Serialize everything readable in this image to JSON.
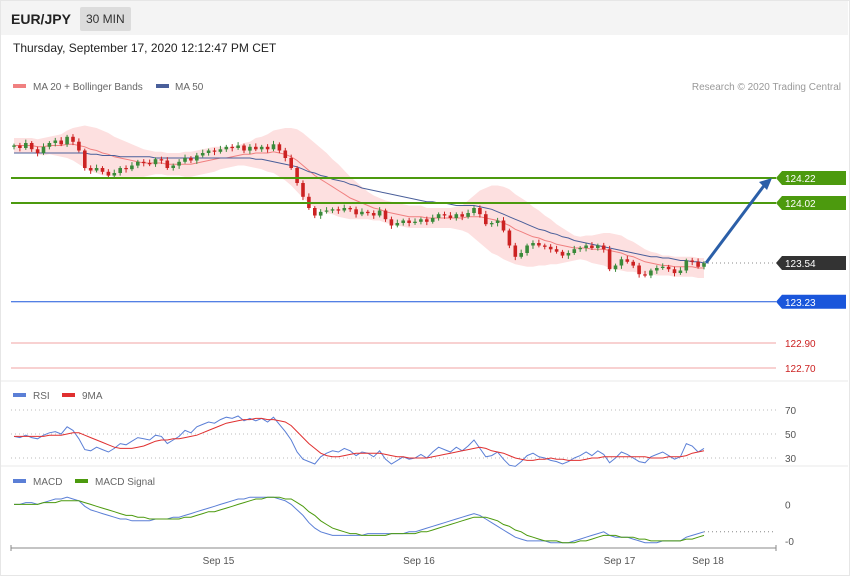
{
  "header": {
    "symbol": "EUR/JPY",
    "timeframe": "30 MIN",
    "datetime": "Thursday, September 17, 2020 12:12:47 PM CET"
  },
  "colors": {
    "bull": "#3a8a3a",
    "bear": "#cc2222",
    "ma20": "#f08080",
    "bands_fill": "#fde0e0",
    "ma50": "#4a5f9a",
    "resistance": "#4c9a0e",
    "support": "#1a56db",
    "support_light": "#f2a3a3",
    "rsi": "#5b7fd6",
    "rsi_ma": "#e03030",
    "macd": "#5b7fd6",
    "macd_signal": "#4c9a0e",
    "arrow": "#2b5fa8",
    "current": "#333333"
  },
  "chart_data": [
    {
      "type": "candlestick",
      "panel": "price",
      "legend": [
        "MA 20 + Bollinger Bands",
        "MA 50"
      ],
      "credit": "Research © 2020 Trading Central",
      "x_labels": [
        "Sep 15",
        "Sep 16",
        "Sep 17",
        "Sep 18"
      ],
      "ylim": [
        122.7,
        124.7
      ],
      "closes": [
        124.48,
        124.46,
        124.5,
        124.45,
        124.42,
        124.47,
        124.5,
        124.52,
        124.49,
        124.55,
        124.51,
        124.44,
        124.3,
        124.28,
        124.3,
        124.27,
        124.24,
        124.26,
        124.3,
        124.29,
        124.32,
        124.35,
        124.34,
        124.33,
        124.37,
        124.36,
        124.3,
        124.32,
        124.35,
        124.38,
        124.36,
        124.4,
        124.42,
        124.44,
        124.43,
        124.45,
        124.47,
        124.46,
        124.48,
        124.44,
        124.47,
        124.45,
        124.47,
        124.45,
        124.49,
        124.44,
        124.38,
        124.3,
        124.18,
        124.07,
        123.98,
        123.92,
        123.95,
        123.96,
        123.97,
        123.96,
        123.98,
        123.97,
        123.93,
        123.95,
        123.94,
        123.92,
        123.96,
        123.89,
        123.84,
        123.86,
        123.88,
        123.86,
        123.87,
        123.89,
        123.87,
        123.9,
        123.93,
        123.92,
        123.9,
        123.93,
        123.91,
        123.94,
        123.98,
        123.93,
        123.85,
        123.86,
        123.88,
        123.8,
        123.68,
        123.59,
        123.62,
        123.68,
        123.7,
        123.68,
        123.67,
        123.65,
        123.63,
        123.6,
        123.62,
        123.65,
        123.66,
        123.68,
        123.66,
        123.68,
        123.65,
        123.49,
        123.52,
        123.57,
        123.55,
        123.52,
        123.45,
        123.44,
        123.48,
        123.5,
        123.51,
        123.49,
        123.46,
        123.48,
        123.56,
        123.55,
        123.51,
        123.54
      ],
      "ma20": [
        124.48,
        124.48,
        124.48,
        124.48,
        124.47,
        124.47,
        124.48,
        124.48,
        124.48,
        124.49,
        124.49,
        124.48,
        124.47,
        124.45,
        124.44,
        124.42,
        124.41,
        124.39,
        124.38,
        124.37,
        124.36,
        124.35,
        124.34,
        124.34,
        124.34,
        124.34,
        124.33,
        124.33,
        124.33,
        124.33,
        124.33,
        124.34,
        124.35,
        124.36,
        124.37,
        124.38,
        124.38,
        124.39,
        124.4,
        124.41,
        124.41,
        124.42,
        124.42,
        124.42,
        124.43,
        124.42,
        124.41,
        124.39,
        124.36,
        124.32,
        124.28,
        124.24,
        124.21,
        124.18,
        124.15,
        124.12,
        124.09,
        124.06,
        124.04,
        124.02,
        124.0,
        123.98,
        123.97,
        123.95,
        123.94,
        123.93,
        123.92,
        123.91,
        123.91,
        123.91,
        123.9,
        123.9,
        123.9,
        123.9,
        123.9,
        123.9,
        123.9,
        123.91,
        123.91,
        123.91,
        123.9,
        123.89,
        123.88,
        123.86,
        123.84,
        123.81,
        123.79,
        123.77,
        123.75,
        123.74,
        123.72,
        123.71,
        123.69,
        123.68,
        123.67,
        123.66,
        123.66,
        123.66,
        123.65,
        123.65,
        123.65,
        123.64,
        123.63,
        123.62,
        123.6,
        123.59,
        123.57,
        123.55,
        123.54,
        123.53,
        123.52,
        123.52,
        123.51,
        123.51,
        123.51,
        123.51,
        123.5,
        123.5
      ],
      "ma50": [
        124.42,
        124.42,
        124.42,
        124.42,
        124.42,
        124.42,
        124.42,
        124.42,
        124.42,
        124.42,
        124.42,
        124.42,
        124.42,
        124.41,
        124.41,
        124.4,
        124.4,
        124.4,
        124.39,
        124.39,
        124.39,
        124.39,
        124.39,
        124.39,
        124.38,
        124.38,
        124.38,
        124.38,
        124.38,
        124.38,
        124.38,
        124.38,
        124.38,
        124.38,
        124.38,
        124.38,
        124.38,
        124.38,
        124.38,
        124.38,
        124.38,
        124.37,
        124.37,
        124.36,
        124.35,
        124.34,
        124.33,
        124.32,
        124.31,
        124.29,
        124.27,
        124.26,
        124.24,
        124.23,
        124.21,
        124.2,
        124.19,
        124.17,
        124.16,
        124.14,
        124.13,
        124.12,
        124.11,
        124.1,
        124.09,
        124.08,
        124.07,
        124.06,
        124.05,
        124.04,
        124.03,
        124.03,
        124.02,
        124.02,
        124.01,
        124.0,
        124.0,
        124.0,
        124.0,
        123.99,
        123.98,
        123.97,
        123.95,
        123.93,
        123.91,
        123.89,
        123.87,
        123.85,
        123.83,
        123.81,
        123.8,
        123.78,
        123.77,
        123.75,
        123.74,
        123.72,
        123.71,
        123.7,
        123.69,
        123.68,
        123.67,
        123.66,
        123.65,
        123.64,
        123.63,
        123.62,
        123.61,
        123.6,
        123.59,
        123.59,
        123.58,
        123.58,
        123.57,
        123.56,
        123.56,
        123.55,
        123.55,
        123.54
      ],
      "band_width": [
        0.06,
        0.06,
        0.06,
        0.06,
        0.06,
        0.07,
        0.07,
        0.08,
        0.09,
        0.11,
        0.13,
        0.15,
        0.17,
        0.18,
        0.18,
        0.18,
        0.17,
        0.16,
        0.15,
        0.14,
        0.13,
        0.12,
        0.11,
        0.1,
        0.09,
        0.09,
        0.09,
        0.09,
        0.09,
        0.1,
        0.1,
        0.1,
        0.1,
        0.1,
        0.1,
        0.09,
        0.08,
        0.08,
        0.08,
        0.09,
        0.1,
        0.12,
        0.13,
        0.15,
        0.17,
        0.19,
        0.21,
        0.23,
        0.25,
        0.26,
        0.26,
        0.26,
        0.25,
        0.24,
        0.22,
        0.21,
        0.19,
        0.17,
        0.15,
        0.13,
        0.11,
        0.1,
        0.09,
        0.09,
        0.09,
        0.09,
        0.09,
        0.09,
        0.09,
        0.09,
        0.08,
        0.08,
        0.08,
        0.08,
        0.08,
        0.09,
        0.1,
        0.13,
        0.17,
        0.21,
        0.24,
        0.27,
        0.28,
        0.29,
        0.29,
        0.28,
        0.27,
        0.26,
        0.24,
        0.22,
        0.2,
        0.18,
        0.16,
        0.14,
        0.12,
        0.1,
        0.09,
        0.1,
        0.11,
        0.12,
        0.13,
        0.14,
        0.14,
        0.14,
        0.13,
        0.12,
        0.11,
        0.1,
        0.09,
        0.09,
        0.08,
        0.08,
        0.08,
        0.08,
        0.08,
        0.08,
        0.08,
        0.08
      ],
      "levels": [
        {
          "value": 124.22,
          "label": "124.22",
          "kind": "resistance"
        },
        {
          "value": 124.02,
          "label": "124.02",
          "kind": "resistance"
        },
        {
          "value": 123.54,
          "label": "123.54",
          "kind": "current"
        },
        {
          "value": 123.23,
          "label": "123.23",
          "kind": "support"
        },
        {
          "value": 122.9,
          "label": "122.90",
          "kind": "support_light"
        },
        {
          "value": 122.7,
          "label": "122.70",
          "kind": "support_light"
        }
      ]
    },
    {
      "type": "line",
      "panel": "rsi",
      "legend": [
        "RSI",
        "9MA"
      ],
      "ylim": [
        20,
        80
      ],
      "ticks": [
        {
          "value": 70,
          "label": "70"
        },
        {
          "value": 50,
          "label": "50"
        },
        {
          "value": 30,
          "label": "30"
        }
      ],
      "rsi": [
        48,
        47,
        49,
        47,
        46,
        49,
        51,
        52,
        50,
        56,
        53,
        46,
        37,
        36,
        39,
        37,
        35,
        38,
        42,
        41,
        44,
        47,
        46,
        45,
        49,
        48,
        42,
        45,
        48,
        53,
        51,
        56,
        58,
        60,
        59,
        62,
        64,
        63,
        65,
        61,
        63,
        61,
        63,
        60,
        64,
        58,
        52,
        45,
        35,
        29,
        27,
        25,
        31,
        34,
        36,
        35,
        38,
        36,
        32,
        35,
        34,
        31,
        36,
        29,
        25,
        28,
        31,
        29,
        30,
        33,
        30,
        35,
        39,
        37,
        35,
        39,
        36,
        40,
        45,
        38,
        31,
        32,
        35,
        29,
        24,
        23,
        27,
        32,
        34,
        31,
        30,
        28,
        27,
        25,
        27,
        30,
        32,
        35,
        32,
        36,
        33,
        26,
        30,
        35,
        33,
        30,
        27,
        26,
        31,
        33,
        35,
        32,
        29,
        31,
        42,
        40,
        35,
        38
      ],
      "rsi_ma": [
        48,
        48,
        48,
        48,
        48,
        48,
        49,
        49,
        49,
        50,
        51,
        51,
        49,
        47,
        45,
        43,
        41,
        39,
        38,
        38,
        38,
        39,
        40,
        42,
        44,
        45,
        45,
        46,
        46,
        47,
        48,
        49,
        51,
        53,
        55,
        57,
        59,
        60,
        61,
        62,
        62,
        63,
        63,
        62,
        62,
        61,
        60,
        57,
        52,
        47,
        42,
        38,
        34,
        32,
        31,
        31,
        32,
        33,
        34,
        34,
        34,
        34,
        34,
        33,
        32,
        31,
        31,
        30,
        30,
        30,
        30,
        31,
        32,
        33,
        34,
        35,
        36,
        37,
        38,
        39,
        38,
        36,
        35,
        34,
        32,
        30,
        29,
        28,
        28,
        29,
        29,
        30,
        29,
        29,
        28,
        28,
        28,
        29,
        30,
        30,
        31,
        31,
        31,
        31,
        31,
        31,
        31,
        31,
        30,
        30,
        30,
        31,
        31,
        31,
        32,
        34,
        35,
        36
      ]
    },
    {
      "type": "line",
      "panel": "macd",
      "legend": [
        "MACD",
        "MACD Signal"
      ],
      "ylim": [
        -0.25,
        0.2
      ],
      "ticks": [
        {
          "value": 0,
          "label": "0"
        },
        {
          "value": -0.2,
          "label": "-0"
        }
      ],
      "macd": [
        0.0,
        0.0,
        0.01,
        0.01,
        0.0,
        0.01,
        0.02,
        0.03,
        0.03,
        0.04,
        0.03,
        0.02,
        -0.01,
        -0.03,
        -0.04,
        -0.05,
        -0.06,
        -0.07,
        -0.08,
        -0.08,
        -0.09,
        -0.09,
        -0.09,
        -0.09,
        -0.08,
        -0.08,
        -0.08,
        -0.07,
        -0.07,
        -0.06,
        -0.05,
        -0.04,
        -0.03,
        -0.02,
        -0.01,
        0.0,
        0.01,
        0.02,
        0.03,
        0.03,
        0.04,
        0.04,
        0.04,
        0.04,
        0.04,
        0.03,
        0.02,
        0.0,
        -0.03,
        -0.06,
        -0.1,
        -0.13,
        -0.15,
        -0.16,
        -0.17,
        -0.17,
        -0.17,
        -0.17,
        -0.17,
        -0.17,
        -0.16,
        -0.16,
        -0.16,
        -0.16,
        -0.16,
        -0.16,
        -0.16,
        -0.15,
        -0.15,
        -0.14,
        -0.13,
        -0.12,
        -0.11,
        -0.1,
        -0.09,
        -0.08,
        -0.07,
        -0.06,
        -0.05,
        -0.06,
        -0.08,
        -0.1,
        -0.12,
        -0.14,
        -0.16,
        -0.18,
        -0.19,
        -0.2,
        -0.2,
        -0.2,
        -0.2,
        -0.21,
        -0.21,
        -0.21,
        -0.21,
        -0.2,
        -0.19,
        -0.18,
        -0.17,
        -0.16,
        -0.15,
        -0.17,
        -0.18,
        -0.18,
        -0.18,
        -0.19,
        -0.2,
        -0.21,
        -0.21,
        -0.21,
        -0.2,
        -0.2,
        -0.2,
        -0.2,
        -0.18,
        -0.17,
        -0.16,
        -0.15
      ],
      "signal": [
        0.0,
        0.0,
        0.0,
        0.0,
        0.0,
        0.01,
        0.01,
        0.01,
        0.02,
        0.02,
        0.02,
        0.02,
        0.01,
        0.0,
        -0.01,
        -0.02,
        -0.03,
        -0.04,
        -0.05,
        -0.06,
        -0.06,
        -0.07,
        -0.07,
        -0.08,
        -0.08,
        -0.08,
        -0.08,
        -0.08,
        -0.08,
        -0.07,
        -0.07,
        -0.06,
        -0.05,
        -0.04,
        -0.04,
        -0.03,
        -0.02,
        -0.01,
        0.0,
        0.01,
        0.02,
        0.03,
        0.03,
        0.04,
        0.04,
        0.04,
        0.03,
        0.03,
        0.01,
        -0.01,
        -0.04,
        -0.06,
        -0.09,
        -0.11,
        -0.13,
        -0.14,
        -0.15,
        -0.16,
        -0.16,
        -0.17,
        -0.17,
        -0.17,
        -0.17,
        -0.17,
        -0.16,
        -0.16,
        -0.16,
        -0.16,
        -0.16,
        -0.15,
        -0.15,
        -0.14,
        -0.13,
        -0.12,
        -0.11,
        -0.1,
        -0.09,
        -0.08,
        -0.07,
        -0.07,
        -0.07,
        -0.08,
        -0.09,
        -0.11,
        -0.12,
        -0.14,
        -0.15,
        -0.17,
        -0.18,
        -0.19,
        -0.2,
        -0.2,
        -0.2,
        -0.21,
        -0.21,
        -0.21,
        -0.2,
        -0.2,
        -0.19,
        -0.18,
        -0.17,
        -0.17,
        -0.17,
        -0.18,
        -0.18,
        -0.18,
        -0.19,
        -0.19,
        -0.2,
        -0.2,
        -0.2,
        -0.2,
        -0.2,
        -0.2,
        -0.19,
        -0.19,
        -0.18,
        -0.17
      ]
    }
  ]
}
